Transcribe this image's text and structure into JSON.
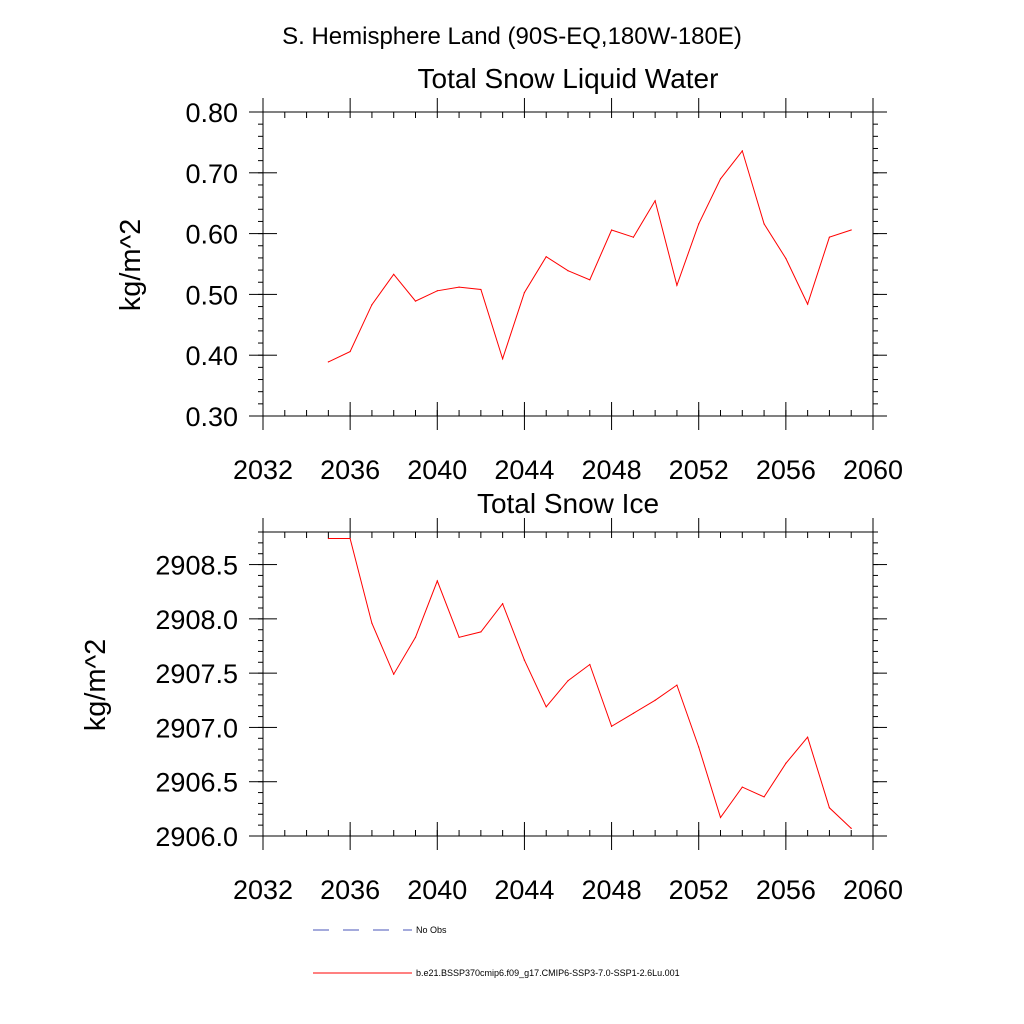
{
  "page_title": "S. Hemisphere Land (90S-EQ,180W-180E)",
  "chart_data": [
    {
      "type": "line",
      "title": "Total Snow Liquid Water",
      "ylabel": "kg/m^2",
      "xlabel": "",
      "xlim": [
        2032,
        2060
      ],
      "ylim": [
        0.3,
        0.8
      ],
      "xticks": [
        "2032",
        "2036",
        "2040",
        "2044",
        "2048",
        "2052",
        "2056",
        "2060"
      ],
      "yticks": [
        "0.30",
        "0.40",
        "0.50",
        "0.60",
        "0.70",
        "0.80"
      ],
      "x": [
        2035,
        2036,
        2037,
        2038,
        2039,
        2040,
        2041,
        2042,
        2043,
        2044,
        2045,
        2046,
        2047,
        2048,
        2049,
        2050,
        2051,
        2052,
        2053,
        2054,
        2055,
        2056,
        2057,
        2058,
        2059
      ],
      "series": [
        {
          "color": "#ff0000",
          "values": [
            0.389,
            0.406,
            0.483,
            0.533,
            0.489,
            0.506,
            0.512,
            0.508,
            0.394,
            0.503,
            0.562,
            0.539,
            0.524,
            0.606,
            0.594,
            0.654,
            0.515,
            0.616,
            0.69,
            0.736,
            0.616,
            0.559,
            0.484,
            0.594,
            0.606
          ]
        }
      ]
    },
    {
      "type": "line",
      "title": "Total Snow Ice",
      "ylabel": "kg/m^2",
      "xlabel": "",
      "xlim": [
        2032,
        2060
      ],
      "ylim": [
        2906.0,
        2908.8
      ],
      "xticks": [
        "2032",
        "2036",
        "2040",
        "2044",
        "2048",
        "2052",
        "2056",
        "2060"
      ],
      "yticks": [
        "2906.0",
        "2906.5",
        "2907.0",
        "2907.5",
        "2908.0",
        "2908.5"
      ],
      "x": [
        2035,
        2036,
        2037,
        2038,
        2039,
        2040,
        2041,
        2042,
        2043,
        2044,
        2045,
        2046,
        2047,
        2048,
        2049,
        2050,
        2051,
        2052,
        2053,
        2054,
        2055,
        2056,
        2057,
        2058,
        2059
      ],
      "series": [
        {
          "color": "#ff0000",
          "values": [
            2908.74,
            2908.74,
            2907.96,
            2907.49,
            2907.83,
            2908.35,
            2907.83,
            2907.88,
            2908.14,
            2907.62,
            2907.19,
            2907.43,
            2907.58,
            2907.01,
            2907.13,
            2907.25,
            2907.39,
            2906.82,
            2906.17,
            2906.45,
            2906.36,
            2906.67,
            2906.91,
            2906.26,
            2906.07
          ]
        }
      ]
    }
  ],
  "legend": {
    "items": [
      {
        "label": "No Obs",
        "color": "#4a55b8",
        "dash": "dashed"
      },
      {
        "label": "b.e21.BSSP370cmip6.f09_g17.CMIP6-SSP3-7.0-SSP1-2.6Lu.001",
        "color": "#ff0000",
        "dash": "solid"
      }
    ]
  }
}
